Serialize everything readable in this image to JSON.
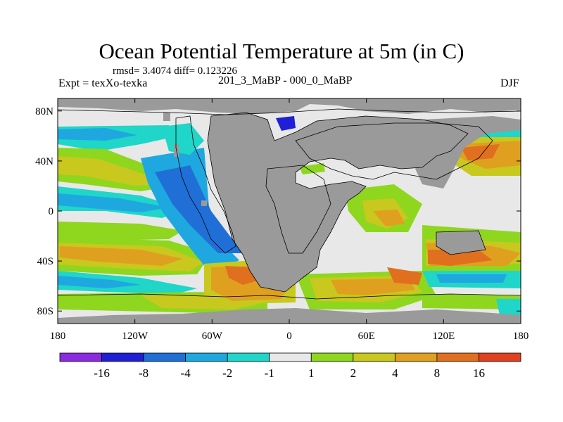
{
  "title": "Ocean Potential Temperature at 5m (in C)",
  "stats_line": "rmsd= 3.4074 diff= 0.123226",
  "experiment": "Expt = texXo-texka",
  "comparison": "201_3_MaBP - 000_0_MaBP",
  "season": "DJF",
  "lat_ticks": [
    {
      "label": "80N",
      "lat": 80
    },
    {
      "label": "40N",
      "lat": 40
    },
    {
      "label": "0",
      "lat": 0
    },
    {
      "label": "40S",
      "lat": -40
    },
    {
      "label": "80S",
      "lat": -80
    }
  ],
  "lon_ticks": [
    {
      "label": "180",
      "lon": -180
    },
    {
      "label": "120W",
      "lon": -120
    },
    {
      "label": "60W",
      "lon": -60
    },
    {
      "label": "0",
      "lon": 0
    },
    {
      "label": "60E",
      "lon": 60
    },
    {
      "label": "120E",
      "lon": 120
    },
    {
      "label": "180",
      "lon": 180
    }
  ],
  "colorbar": {
    "colors": [
      "#8a2be2",
      "#1f1fd6",
      "#1f6fd6",
      "#1fa8e0",
      "#1fd6c8",
      "#e8e8e8",
      "#8fd61f",
      "#c8c81f",
      "#e0a01f",
      "#e0701f",
      "#e0401f"
    ],
    "labels": [
      "-16",
      "-8",
      "-4",
      "-2",
      "-1",
      "1",
      "2",
      "4",
      "8",
      "16"
    ]
  },
  "map_colors": {
    "land": "#9a9a9a",
    "neutral": "#e8e8e8",
    "cyan": "#1fd6c8",
    "lightblue": "#1fa8e0",
    "blue": "#1f6fd6",
    "darkblue": "#1f1fd6",
    "green": "#8fd61f",
    "yellow": "#c8c81f",
    "orange": "#e0a01f",
    "darkorange": "#e0701f",
    "red": "#e0401f"
  }
}
